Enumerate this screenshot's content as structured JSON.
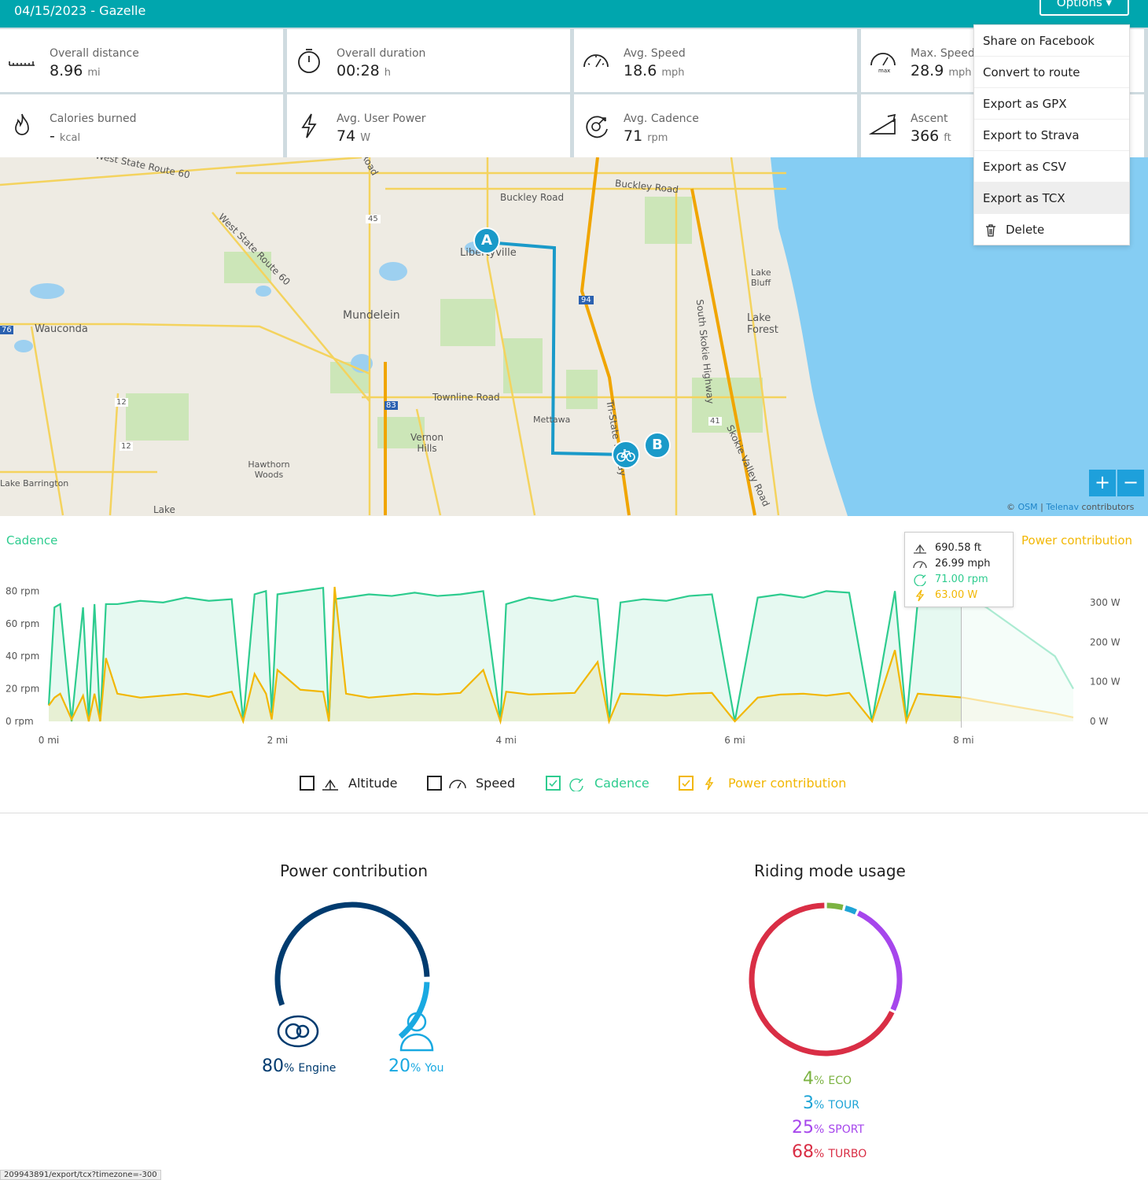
{
  "header": {
    "title": "04/15/2023 - Gazelle",
    "options_label": "Options ▾"
  },
  "stats": [
    {
      "label": "Overall distance",
      "value": "8.96",
      "unit": "mi",
      "icon": "ruler-icon"
    },
    {
      "label": "Overall duration",
      "value": "00:28",
      "unit": "h",
      "icon": "stopwatch-icon"
    },
    {
      "label": "Avg. Speed",
      "value": "18.6",
      "unit": "mph",
      "icon": "speedometer-icon"
    },
    {
      "label": "Max. Speed",
      "value": "28.9",
      "unit": "mph",
      "icon": "max-speedometer-icon"
    },
    {
      "label": "Calories burned",
      "value": "-",
      "unit": "kcal",
      "icon": "flame-icon"
    },
    {
      "label": "Avg. User Power",
      "value": "74",
      "unit": "W",
      "icon": "lightning-icon"
    },
    {
      "label": "Avg. Cadence",
      "value": "71",
      "unit": "rpm",
      "icon": "cadence-icon"
    },
    {
      "label": "Ascent",
      "value": "366",
      "unit": "ft",
      "icon": "ascent-icon"
    }
  ],
  "menu": {
    "items": [
      "Share on Facebook",
      "Convert to route",
      "Export as GPX",
      "Export to Strava",
      "Export as CSV",
      "Export as TCX",
      "Delete"
    ],
    "active": "Export as TCX"
  },
  "map": {
    "labels": [
      "West State Route 60",
      "Road",
      "Buckley Road",
      "Buckley Road",
      "45",
      "Libertyville",
      "West State Route 60",
      "94",
      "Lake Bluff",
      "South Skokie Highway",
      "Mundelein",
      "Lake Forest",
      "Wauconda",
      "76",
      "12",
      "Townline Road",
      "83",
      "Mettawa",
      "Tri-State Tollway",
      "41",
      "Skokie Valley Road",
      "12",
      "Vernon Hills",
      "Hawthorn Woods",
      "Lake Barrington",
      "Lake"
    ],
    "marker_start": "A",
    "marker_end": "B",
    "zoom_in": "+",
    "zoom_out": "−",
    "attribution": {
      "prefix": "© ",
      "osm": "OSM",
      "sep": " | ",
      "telenav": "Telenav",
      "suffix": " contributors"
    }
  },
  "chart_data": {
    "type": "line",
    "left_title": "Cadence",
    "right_title": "Power contribution",
    "x_ticks": [
      "0 mi",
      "2 mi",
      "4 mi",
      "6 mi",
      "8 mi"
    ],
    "x_range": [
      0,
      8.96
    ],
    "y_left_ticks": [
      "0 rpm",
      "20 rpm",
      "40 rpm",
      "60 rpm",
      "80 rpm"
    ],
    "y_left_range": [
      0,
      85
    ],
    "y_right_ticks": [
      "0 W",
      "100 W",
      "200 W",
      "300 W"
    ],
    "y_right_range": [
      0,
      350
    ],
    "cursor_x": 7.98,
    "series": [
      {
        "name": "Cadence",
        "color": "#2ecc8f",
        "x": [
          0,
          0.05,
          0.1,
          0.2,
          0.3,
          0.35,
          0.4,
          0.45,
          0.5,
          0.6,
          0.8,
          1.0,
          1.2,
          1.4,
          1.6,
          1.7,
          1.8,
          1.9,
          1.95,
          2.0,
          2.2,
          2.4,
          2.45,
          2.5,
          2.6,
          2.8,
          3.0,
          3.2,
          3.4,
          3.6,
          3.8,
          3.95,
          4.0,
          4.2,
          4.4,
          4.6,
          4.8,
          4.9,
          5.0,
          5.2,
          5.4,
          5.6,
          5.8,
          6.0,
          6.2,
          6.4,
          6.6,
          6.8,
          7.0,
          7.2,
          7.4,
          7.5,
          7.6,
          7.8,
          8.0,
          8.2,
          8.4,
          8.6,
          8.8,
          8.96
        ],
        "values": [
          10,
          70,
          72,
          0,
          70,
          0,
          72,
          0,
          72,
          72,
          74,
          73,
          76,
          74,
          75,
          0,
          78,
          80,
          5,
          78,
          80,
          82,
          0,
          75,
          76,
          78,
          77,
          79,
          77,
          78,
          80,
          0,
          72,
          76,
          74,
          77,
          75,
          0,
          73,
          75,
          74,
          77,
          78,
          0,
          76,
          78,
          76,
          80,
          79,
          0,
          80,
          0,
          74,
          78,
          76,
          70,
          60,
          50,
          40,
          20
        ]
      },
      {
        "name": "Power contribution",
        "color": "#f2b705",
        "x": [
          0,
          0.05,
          0.1,
          0.2,
          0.3,
          0.35,
          0.4,
          0.45,
          0.5,
          0.6,
          0.8,
          1.0,
          1.2,
          1.4,
          1.6,
          1.7,
          1.8,
          1.9,
          1.95,
          2.0,
          2.2,
          2.4,
          2.45,
          2.5,
          2.6,
          2.8,
          3.0,
          3.2,
          3.4,
          3.6,
          3.8,
          3.95,
          4.0,
          4.2,
          4.4,
          4.6,
          4.8,
          4.9,
          5.0,
          5.2,
          5.4,
          5.6,
          5.8,
          6.0,
          6.2,
          6.4,
          6.6,
          6.8,
          7.0,
          7.2,
          7.4,
          7.5,
          7.6,
          7.8,
          8.0,
          8.2,
          8.4,
          8.6,
          8.8,
          8.96
        ],
        "values": [
          40,
          60,
          70,
          5,
          65,
          0,
          70,
          0,
          160,
          70,
          60,
          65,
          70,
          62,
          75,
          0,
          120,
          70,
          5,
          130,
          80,
          75,
          0,
          340,
          70,
          60,
          65,
          70,
          68,
          72,
          130,
          0,
          75,
          68,
          70,
          72,
          150,
          0,
          70,
          68,
          65,
          70,
          72,
          0,
          60,
          68,
          70,
          65,
          72,
          0,
          180,
          0,
          70,
          65,
          60,
          50,
          40,
          30,
          20,
          10
        ]
      }
    ],
    "tooltip": {
      "altitude": "690.58 ft",
      "speed": "26.99 mph",
      "cadence": "71.00 rpm",
      "power": "63.00 W"
    },
    "legend": [
      {
        "label": "Altitude",
        "checked": false,
        "color": "#222222",
        "icon": "altitude-icon"
      },
      {
        "label": "Speed",
        "checked": false,
        "color": "#222222",
        "icon": "speed-icon"
      },
      {
        "label": "Cadence",
        "checked": true,
        "color": "#2ecc8f",
        "icon": "cadence-icon"
      },
      {
        "label": "Power contribution",
        "checked": true,
        "color": "#f2b705",
        "icon": "lightning-icon"
      }
    ]
  },
  "power_contribution": {
    "title": "Power contribution",
    "engine": {
      "value": "80",
      "pct": "%",
      "label": "Engine",
      "color": "#003b6f"
    },
    "you": {
      "value": "20",
      "pct": "%",
      "label": "You",
      "color": "#19a9e1"
    }
  },
  "riding_mode": {
    "title": "Riding mode usage",
    "modes": [
      {
        "value": "4",
        "pct": "%",
        "label": "ECO",
        "color": "#7cb342"
      },
      {
        "value": "3",
        "pct": "%",
        "label": "TOUR",
        "color": "#1ea4d6"
      },
      {
        "value": "25",
        "pct": "%",
        "label": "SPORT",
        "color": "#a646ec"
      },
      {
        "value": "68",
        "pct": "%",
        "label": "TURBO",
        "color": "#d92e45"
      }
    ]
  },
  "status_url": "209943891/export/tcx?timezone=-300"
}
